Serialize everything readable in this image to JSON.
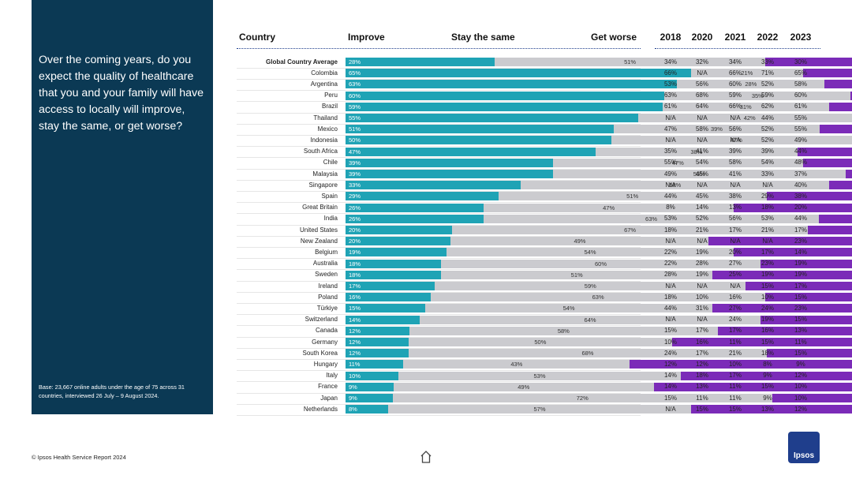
{
  "question": "Over the coming years, do you expect the quality of healthcare that you and your family will have access to locally will improve, stay the same, or get worse?",
  "base_note": "Base: 23,667 online adults under the age of 75 across 31 countries, interviewed 26 July – 9 August 2024.",
  "footer": "© Ipsos Health Service Report 2024",
  "logo_text": "Ipsos",
  "colors": {
    "improve": "#1fa3b5",
    "same": "#cbcbcf",
    "worse": "#7b2bb8",
    "sidebar": "#0b3954"
  },
  "chart_data": {
    "type": "bar",
    "orientation": "horizontal",
    "stacked": true,
    "headers": {
      "country": "Country",
      "improve": "Improve",
      "same": "Stay the same",
      "worse": "Get worse"
    },
    "year_headers": [
      "2018",
      "2020",
      "2021",
      "2022",
      "2023"
    ],
    "series_names": [
      "Improve",
      "Stay the same",
      "Get worse"
    ],
    "rows": [
      {
        "country": "Global Country Average",
        "improve": 28,
        "same": 51,
        "worse": 21,
        "years": [
          "34%",
          "32%",
          "34%",
          "33%",
          "30%"
        ]
      },
      {
        "country": "Colombia",
        "improve": 65,
        "same": 21,
        "worse": 14,
        "years": [
          "66%",
          "N/A",
          "66%",
          "71%",
          "65%"
        ]
      },
      {
        "country": "Argentina",
        "improve": 63,
        "same": 28,
        "worse": 10,
        "years": [
          "53%",
          "56%",
          "60%",
          "52%",
          "58%"
        ]
      },
      {
        "country": "Peru",
        "improve": 60,
        "same": 35,
        "worse": 5,
        "years": [
          "63%",
          "68%",
          "59%",
          "59%",
          "60%"
        ]
      },
      {
        "country": "Brazil",
        "improve": 59,
        "same": 31,
        "worse": 9,
        "years": [
          "61%",
          "64%",
          "66%",
          "62%",
          "61%"
        ]
      },
      {
        "country": "Thailand",
        "improve": 55,
        "same": 42,
        "worse": 3,
        "years": [
          "N/A",
          "N/A",
          "N/A",
          "44%",
          "55%"
        ]
      },
      {
        "country": "Mexico",
        "improve": 51,
        "same": 39,
        "worse": 11,
        "years": [
          "47%",
          "58%",
          "56%",
          "52%",
          "55%"
        ]
      },
      {
        "country": "Indonesia",
        "improve": 50,
        "same": 47,
        "worse": 3,
        "years": [
          "N/A",
          "N/A",
          "N/A",
          "52%",
          "49%"
        ]
      },
      {
        "country": "South Africa",
        "improve": 47,
        "same": 38,
        "worse": 15,
        "years": [
          "35%",
          "41%",
          "39%",
          "39%",
          "44%"
        ]
      },
      {
        "country": "Chile",
        "improve": 39,
        "same": 47,
        "worse": 14,
        "years": [
          "55%",
          "54%",
          "58%",
          "54%",
          "48%"
        ]
      },
      {
        "country": "Malaysia",
        "improve": 39,
        "same": 55,
        "worse": 6,
        "years": [
          "49%",
          "45%",
          "41%",
          "33%",
          "37%"
        ]
      },
      {
        "country": "Singapore",
        "improve": 33,
        "same": 58,
        "worse": 9,
        "years": [
          "N/A",
          "N/A",
          "N/A",
          "N/A",
          "40%"
        ]
      },
      {
        "country": "Spain",
        "improve": 29,
        "same": 51,
        "worse": 21,
        "years": [
          "44%",
          "45%",
          "38%",
          "29%",
          "38%"
        ]
      },
      {
        "country": "Great Britain",
        "improve": 26,
        "same": 47,
        "worse": 27,
        "years": [
          "8%",
          "14%",
          "13%",
          "18%",
          "20%"
        ]
      },
      {
        "country": "India",
        "improve": 26,
        "same": 63,
        "worse": 11,
        "years": [
          "53%",
          "52%",
          "56%",
          "53%",
          "44%"
        ]
      },
      {
        "country": "United States",
        "improve": 20,
        "same": 67,
        "worse": 13,
        "years": [
          "18%",
          "21%",
          "17%",
          "21%",
          "17%"
        ]
      },
      {
        "country": "New Zealand",
        "improve": 20,
        "same": 49,
        "worse": 32,
        "years": [
          "N/A",
          "N/A",
          "N/A",
          "N/A",
          "23%"
        ]
      },
      {
        "country": "Belgium",
        "improve": 19,
        "same": 54,
        "worse": 27,
        "years": [
          "22%",
          "19%",
          "20%",
          "17%",
          "14%"
        ]
      },
      {
        "country": "Australia",
        "improve": 18,
        "same": 60,
        "worse": 22,
        "years": [
          "22%",
          "28%",
          "27%",
          "23%",
          "19%"
        ]
      },
      {
        "country": "Sweden",
        "improve": 18,
        "same": 51,
        "worse": 31,
        "years": [
          "28%",
          "19%",
          "25%",
          "19%",
          "19%"
        ]
      },
      {
        "country": "Ireland",
        "improve": 17,
        "same": 59,
        "worse": 25,
        "years": [
          "N/A",
          "N/A",
          "N/A",
          "15%",
          "17%"
        ]
      },
      {
        "country": "Poland",
        "improve": 16,
        "same": 63,
        "worse": 21,
        "years": [
          "18%",
          "10%",
          "16%",
          "10%",
          "15%"
        ]
      },
      {
        "country": "Türkiye",
        "improve": 15,
        "same": 54,
        "worse": 31,
        "years": [
          "44%",
          "31%",
          "27%",
          "24%",
          "23%"
        ]
      },
      {
        "country": "Switzerland",
        "improve": 14,
        "same": 64,
        "worse": 22,
        "years": [
          "N/A",
          "N/A",
          "24%",
          "19%",
          "15%"
        ]
      },
      {
        "country": "Canada",
        "improve": 12,
        "same": 58,
        "worse": 30,
        "years": [
          "15%",
          "17%",
          "17%",
          "16%",
          "13%"
        ]
      },
      {
        "country": "Germany",
        "improve": 12,
        "same": 50,
        "worse": 39,
        "years": [
          "10%",
          "16%",
          "11%",
          "15%",
          "11%"
        ]
      },
      {
        "country": "South Korea",
        "improve": 12,
        "same": 68,
        "worse": 21,
        "years": [
          "24%",
          "17%",
          "21%",
          "18%",
          "15%"
        ]
      },
      {
        "country": "Hungary",
        "improve": 11,
        "same": 43,
        "worse": 47,
        "years": [
          "12%",
          "12%",
          "10%",
          "8%",
          "9%"
        ]
      },
      {
        "country": "Italy",
        "improve": 10,
        "same": 53,
        "worse": 37,
        "years": [
          "14%",
          "18%",
          "17%",
          "9%",
          "12%"
        ]
      },
      {
        "country": "France",
        "improve": 9,
        "same": 49,
        "worse": 42,
        "years": [
          "14%",
          "13%",
          "11%",
          "15%",
          "10%"
        ]
      },
      {
        "country": "Japan",
        "improve": 9,
        "same": 72,
        "worse": 20,
        "years": [
          "15%",
          "11%",
          "11%",
          "9%",
          "10%"
        ]
      },
      {
        "country": "Netherlands",
        "improve": 8,
        "same": 57,
        "worse": 35,
        "years": [
          "N/A",
          "15%",
          "15%",
          "13%",
          "12%"
        ]
      }
    ]
  }
}
